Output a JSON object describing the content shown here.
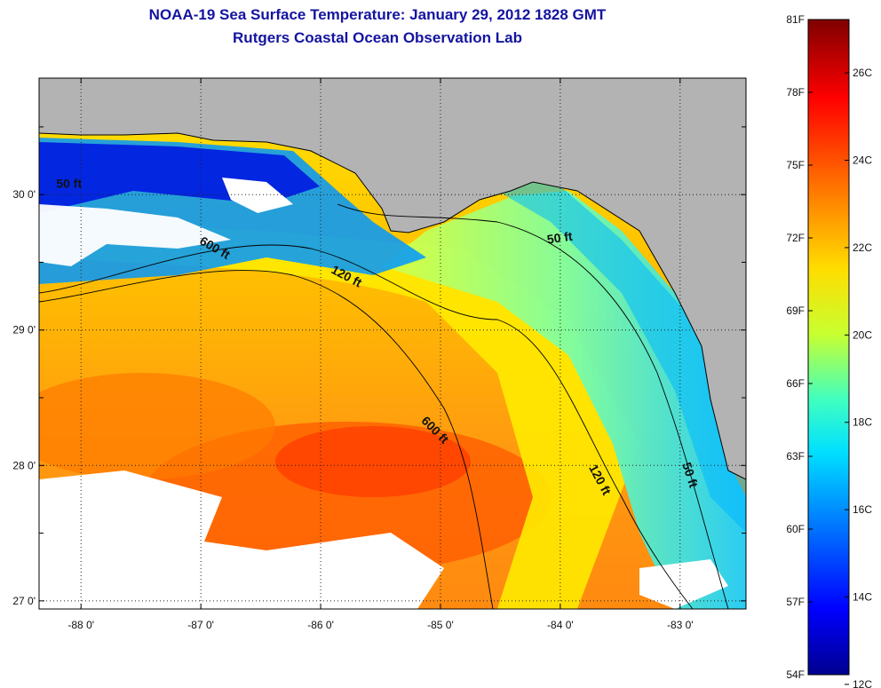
{
  "title": "NOAA-19 Sea Surface Temperature:  January 29, 2012 1828 GMT",
  "subtitle": "Rutgers Coastal Ocean Observation Lab",
  "map": {
    "lon_range": [
      -88.35,
      -82.45
    ],
    "lat_range": [
      26.94,
      30.86
    ],
    "lon_ticks": [
      {
        "value": -88,
        "label": "-88 0'"
      },
      {
        "value": -87,
        "label": "-87 0'"
      },
      {
        "value": -86,
        "label": "-86 0'"
      },
      {
        "value": -85,
        "label": "-85 0'"
      },
      {
        "value": -84,
        "label": "-84 0'"
      },
      {
        "value": -83,
        "label": "-83 0'"
      }
    ],
    "lat_ticks": [
      {
        "value": 27,
        "label": "27 0'"
      },
      {
        "value": 28,
        "label": "28 0'"
      },
      {
        "value": 29,
        "label": "29 0'"
      },
      {
        "value": 30,
        "label": "30 0'"
      }
    ],
    "grid": "dotted",
    "land_color": "#b3b3b3",
    "cloud_color": "#ffffff",
    "contours": [
      {
        "label": "600 ft",
        "lon": -86.9,
        "lat": 29.58,
        "angle": 30
      },
      {
        "label": "120 ft",
        "lon": -85.8,
        "lat": 29.37,
        "angle": 28
      },
      {
        "label": "50 ft",
        "lon": -84.0,
        "lat": 29.65,
        "angle": -8
      },
      {
        "label": "600 ft",
        "lon": -85.07,
        "lat": 28.24,
        "angle": 45
      },
      {
        "label": "120 ft",
        "lon": -83.7,
        "lat": 27.88,
        "angle": 62
      },
      {
        "label": "50 ft",
        "lon": -82.95,
        "lat": 27.92,
        "angle": 72
      },
      {
        "label": "50 ft",
        "lon": -88.1,
        "lat": 30.05,
        "angle": 0
      }
    ]
  },
  "colorbar": {
    "min_F": 54,
    "max_F": 81,
    "f_labels": [
      "81F",
      "78F",
      "75F",
      "72F",
      "69F",
      "66F",
      "63F",
      "60F",
      "57F",
      "54F"
    ],
    "c_labels": [
      "26C",
      "24C",
      "22C",
      "20C",
      "18C",
      "16C",
      "14C",
      "12C"
    ],
    "colors": [
      "#00008f",
      "#0000ff",
      "#0080ff",
      "#00ffff",
      "#80ff80",
      "#ffff00",
      "#ff8000",
      "#ff0000",
      "#800000"
    ]
  }
}
